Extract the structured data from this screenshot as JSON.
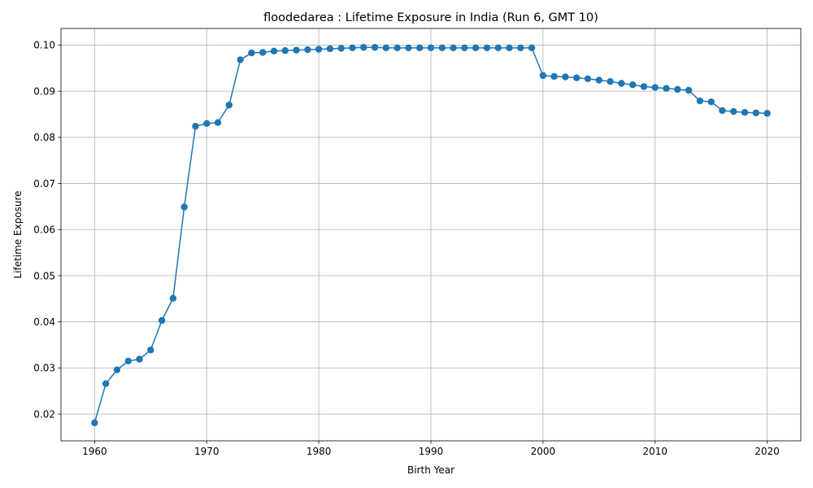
{
  "chart_data": {
    "type": "line",
    "title": "floodedarea : Lifetime Exposure in India (Run 6, GMT 10)",
    "xlabel": "Birth Year",
    "ylabel": "Lifetime Exposure",
    "xlim": [
      1957,
      2023
    ],
    "ylim": [
      0.0142,
      0.1036
    ],
    "x_ticks": [
      1960,
      1970,
      1980,
      1990,
      2000,
      2010,
      2020
    ],
    "x_tick_labels": [
      "1960",
      "1970",
      "1980",
      "1990",
      "2000",
      "2010",
      "2020"
    ],
    "y_ticks": [
      0.02,
      0.03,
      0.04,
      0.05,
      0.06,
      0.07,
      0.08,
      0.09,
      0.1
    ],
    "y_tick_labels": [
      "0.02",
      "0.03",
      "0.04",
      "0.05",
      "0.06",
      "0.07",
      "0.08",
      "0.09",
      "0.10"
    ],
    "grid": true,
    "color": "#1f77b4",
    "marker": "circle",
    "x": [
      1960,
      1961,
      1962,
      1963,
      1964,
      1965,
      1966,
      1967,
      1968,
      1969,
      1970,
      1971,
      1972,
      1973,
      1974,
      1975,
      1976,
      1977,
      1978,
      1979,
      1980,
      1981,
      1982,
      1983,
      1984,
      1985,
      1986,
      1987,
      1988,
      1989,
      1990,
      1991,
      1992,
      1993,
      1994,
      1995,
      1996,
      1997,
      1998,
      1999,
      2000,
      2001,
      2002,
      2003,
      2004,
      2005,
      2006,
      2007,
      2008,
      2009,
      2010,
      2011,
      2012,
      2013,
      2014,
      2015,
      2016,
      2017,
      2018,
      2019,
      2020
    ],
    "y": [
      0.0181,
      0.0266,
      0.0296,
      0.0315,
      0.0319,
      0.0339,
      0.0403,
      0.0451,
      0.0649,
      0.0824,
      0.083,
      0.0832,
      0.087,
      0.0968,
      0.0983,
      0.0984,
      0.0987,
      0.0988,
      0.0989,
      0.099,
      0.0991,
      0.0992,
      0.0993,
      0.0994,
      0.0995,
      0.0995,
      0.0994,
      0.0994,
      0.0994,
      0.0994,
      0.0994,
      0.0994,
      0.0994,
      0.0994,
      0.0994,
      0.0994,
      0.0994,
      0.0994,
      0.0994,
      0.0994,
      0.0934,
      0.0932,
      0.0931,
      0.0929,
      0.0927,
      0.0924,
      0.0921,
      0.0917,
      0.0914,
      0.091,
      0.0908,
      0.0906,
      0.0904,
      0.0902,
      0.0879,
      0.0877,
      0.0858,
      0.0856,
      0.0854,
      0.0853,
      0.0852
    ]
  }
}
